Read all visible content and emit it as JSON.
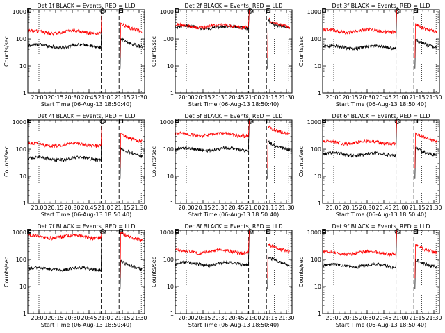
{
  "chart_data": [
    {
      "type": "line",
      "title": "Det 1f BLACK = Events, RED = LLD",
      "xlabel": "Start Time (06-Aug-13 18:50:40)",
      "ylabel": "Counts/sec",
      "x_tick_labels": [
        "20:00",
        "20:15",
        "20:30",
        "20:45",
        "21:00",
        "21:15",
        "21:30"
      ],
      "y_tick_labels": [
        "1",
        "10",
        "100",
        "1000"
      ],
      "ylim": [
        1,
        1200
      ],
      "xlim_minutes_after_19_50": [
        0,
        105
      ],
      "markers": [
        {
          "label": "S",
          "minute": 66
        },
        {
          "label": "E",
          "minute": 82
        }
      ],
      "series": [
        {
          "name": "Events",
          "color": "#000000",
          "pre_level": 55,
          "post_level": 80
        },
        {
          "name": "LLD",
          "color": "#ff0000",
          "pre_level": 180,
          "post_level": 300
        }
      ]
    },
    {
      "type": "line",
      "title": "Det 2f BLACK = Events, RED = LLD",
      "xlabel": "Start Time (06-Aug-13 18:50:40)",
      "ylabel": "Counts/sec",
      "x_tick_labels": [
        "20:00",
        "20:15",
        "20:30",
        "20:45",
        "21:00",
        "21:15",
        "21:30"
      ],
      "y_tick_labels": [
        "1",
        "10",
        "100",
        "1000"
      ],
      "ylim": [
        1,
        1200
      ],
      "xlim_minutes_after_19_50": [
        0,
        105
      ],
      "markers": [
        {
          "label": "S",
          "minute": 66
        },
        {
          "label": "E",
          "minute": 82
        }
      ],
      "series": [
        {
          "name": "Events",
          "color": "#000000",
          "pre_level": 270,
          "post_level": 380
        },
        {
          "name": "LLD",
          "color": "#ff0000",
          "pre_level": 300,
          "post_level": 420
        }
      ]
    },
    {
      "type": "line",
      "title": "Det 3f BLACK = Events, RED = LLD",
      "xlabel": "Start Time (06-Aug-13 18:50:40)",
      "ylabel": "Counts/sec",
      "x_tick_labels": [
        "20:00",
        "20:15",
        "20:30",
        "20:45",
        "21:00",
        "21:15",
        "21:30"
      ],
      "y_tick_labels": [
        "1",
        "10",
        "100",
        "1000"
      ],
      "ylim": [
        1,
        1200
      ],
      "xlim_minutes_after_19_50": [
        0,
        105
      ],
      "markers": [
        {
          "label": "S",
          "minute": 66
        },
        {
          "label": "E",
          "minute": 82
        }
      ],
      "series": [
        {
          "name": "Events",
          "color": "#000000",
          "pre_level": 50,
          "post_level": 75
        },
        {
          "name": "LLD",
          "color": "#ff0000",
          "pre_level": 200,
          "post_level": 280
        }
      ]
    },
    {
      "type": "line",
      "title": "Det 4f BLACK = Events, RED = LLD",
      "xlabel": "Start Time (06-Aug-13 18:50:40)",
      "ylabel": "Counts/sec",
      "x_tick_labels": [
        "20:00",
        "20:15",
        "20:30",
        "20:45",
        "21:00",
        "21:15",
        "21:30"
      ],
      "y_tick_labels": [
        "1",
        "10",
        "100",
        "1000"
      ],
      "ylim": [
        1,
        1200
      ],
      "xlim_minutes_after_19_50": [
        0,
        105
      ],
      "markers": [
        {
          "label": "S",
          "minute": 66
        },
        {
          "label": "E",
          "minute": 82
        }
      ],
      "series": [
        {
          "name": "Events",
          "color": "#000000",
          "pre_level": 45,
          "post_level": 90
        },
        {
          "name": "LLD",
          "color": "#ff0000",
          "pre_level": 150,
          "post_level": 300
        }
      ]
    },
    {
      "type": "line",
      "title": "Det 5f BLACK = Events, RED = LLD",
      "xlabel": "Start Time (06-Aug-13 18:50:40)",
      "ylabel": "Counts/sec",
      "x_tick_labels": [
        "20:00",
        "20:15",
        "20:30",
        "20:45",
        "21:00",
        "21:15",
        "21:30"
      ],
      "y_tick_labels": [
        "1",
        "10",
        "100",
        "1000"
      ],
      "ylim": [
        1,
        1200
      ],
      "xlim_minutes_after_19_50": [
        0,
        105
      ],
      "markers": [
        {
          "label": "S",
          "minute": 66
        },
        {
          "label": "E",
          "minute": 82
        }
      ],
      "series": [
        {
          "name": "Events",
          "color": "#000000",
          "pre_level": 100,
          "post_level": 150
        },
        {
          "name": "LLD",
          "color": "#ff0000",
          "pre_level": 350,
          "post_level": 550
        }
      ]
    },
    {
      "type": "line",
      "title": "Det 6f BLACK = Events, RED = LLD",
      "xlabel": "Start Time (06-Aug-13 18:50:40)",
      "ylabel": "Counts/sec",
      "x_tick_labels": [
        "20:00",
        "20:15",
        "20:30",
        "20:45",
        "21:00",
        "21:15",
        "21:30"
      ],
      "y_tick_labels": [
        "1",
        "10",
        "100",
        "1000"
      ],
      "ylim": [
        1,
        1200
      ],
      "xlim_minutes_after_19_50": [
        0,
        105
      ],
      "markers": [
        {
          "label": "S",
          "minute": 66
        },
        {
          "label": "E",
          "minute": 82
        }
      ],
      "series": [
        {
          "name": "Events",
          "color": "#000000",
          "pre_level": 65,
          "post_level": 90
        },
        {
          "name": "LLD",
          "color": "#ff0000",
          "pre_level": 180,
          "post_level": 320
        }
      ]
    },
    {
      "type": "line",
      "title": "Det 7f BLACK = Events, RED = LLD",
      "xlabel": "Start Time (06-Aug-13 18:50:40)",
      "ylabel": "Counts/sec",
      "x_tick_labels": [
        "20:00",
        "20:15",
        "20:30",
        "20:45",
        "21:00",
        "21:15",
        "21:30"
      ],
      "y_tick_labels": [
        "1",
        "10",
        "100",
        "1000"
      ],
      "ylim": [
        1,
        1200
      ],
      "xlim_minutes_after_19_50": [
        0,
        105
      ],
      "markers": [
        {
          "label": "S",
          "minute": 66
        },
        {
          "label": "E",
          "minute": 82
        }
      ],
      "series": [
        {
          "name": "Events",
          "color": "#000000",
          "pre_level": 45,
          "post_level": 70
        },
        {
          "name": "LLD",
          "color": "#ff0000",
          "pre_level": 700,
          "post_level": 800
        }
      ]
    },
    {
      "type": "line",
      "title": "Det 8f BLACK = Events, RED = LLD",
      "xlabel": "Start Time (06-Aug-13 18:50:40)",
      "ylabel": "Counts/sec",
      "x_tick_labels": [
        "20:00",
        "20:15",
        "20:30",
        "20:45",
        "21:00",
        "21:15",
        "21:30"
      ],
      "y_tick_labels": [
        "1",
        "10",
        "100",
        "1000"
      ],
      "ylim": [
        1,
        1200
      ],
      "xlim_minutes_after_19_50": [
        0,
        105
      ],
      "markers": [
        {
          "label": "S",
          "minute": 66
        },
        {
          "label": "E",
          "minute": 82
        }
      ],
      "series": [
        {
          "name": "Events",
          "color": "#000000",
          "pre_level": 70,
          "post_level": 100
        },
        {
          "name": "LLD",
          "color": "#ff0000",
          "pre_level": 200,
          "post_level": 300
        }
      ]
    },
    {
      "type": "line",
      "title": "Det 9f BLACK = Events, RED = LLD",
      "xlabel": "Start Time (06-Aug-13 18:50:40)",
      "ylabel": "Counts/sec",
      "x_tick_labels": [
        "20:00",
        "20:15",
        "20:30",
        "20:45",
        "21:00",
        "21:15",
        "21:30"
      ],
      "y_tick_labels": [
        "1",
        "10",
        "100",
        "1000"
      ],
      "ylim": [
        1,
        1200
      ],
      "xlim_minutes_after_19_50": [
        0,
        105
      ],
      "markers": [
        {
          "label": "S",
          "minute": 66
        },
        {
          "label": "E",
          "minute": 82
        }
      ],
      "series": [
        {
          "name": "Events",
          "color": "#000000",
          "pre_level": 60,
          "post_level": 80
        },
        {
          "name": "LLD",
          "color": "#ff0000",
          "pre_level": 180,
          "post_level": 280
        }
      ]
    }
  ]
}
